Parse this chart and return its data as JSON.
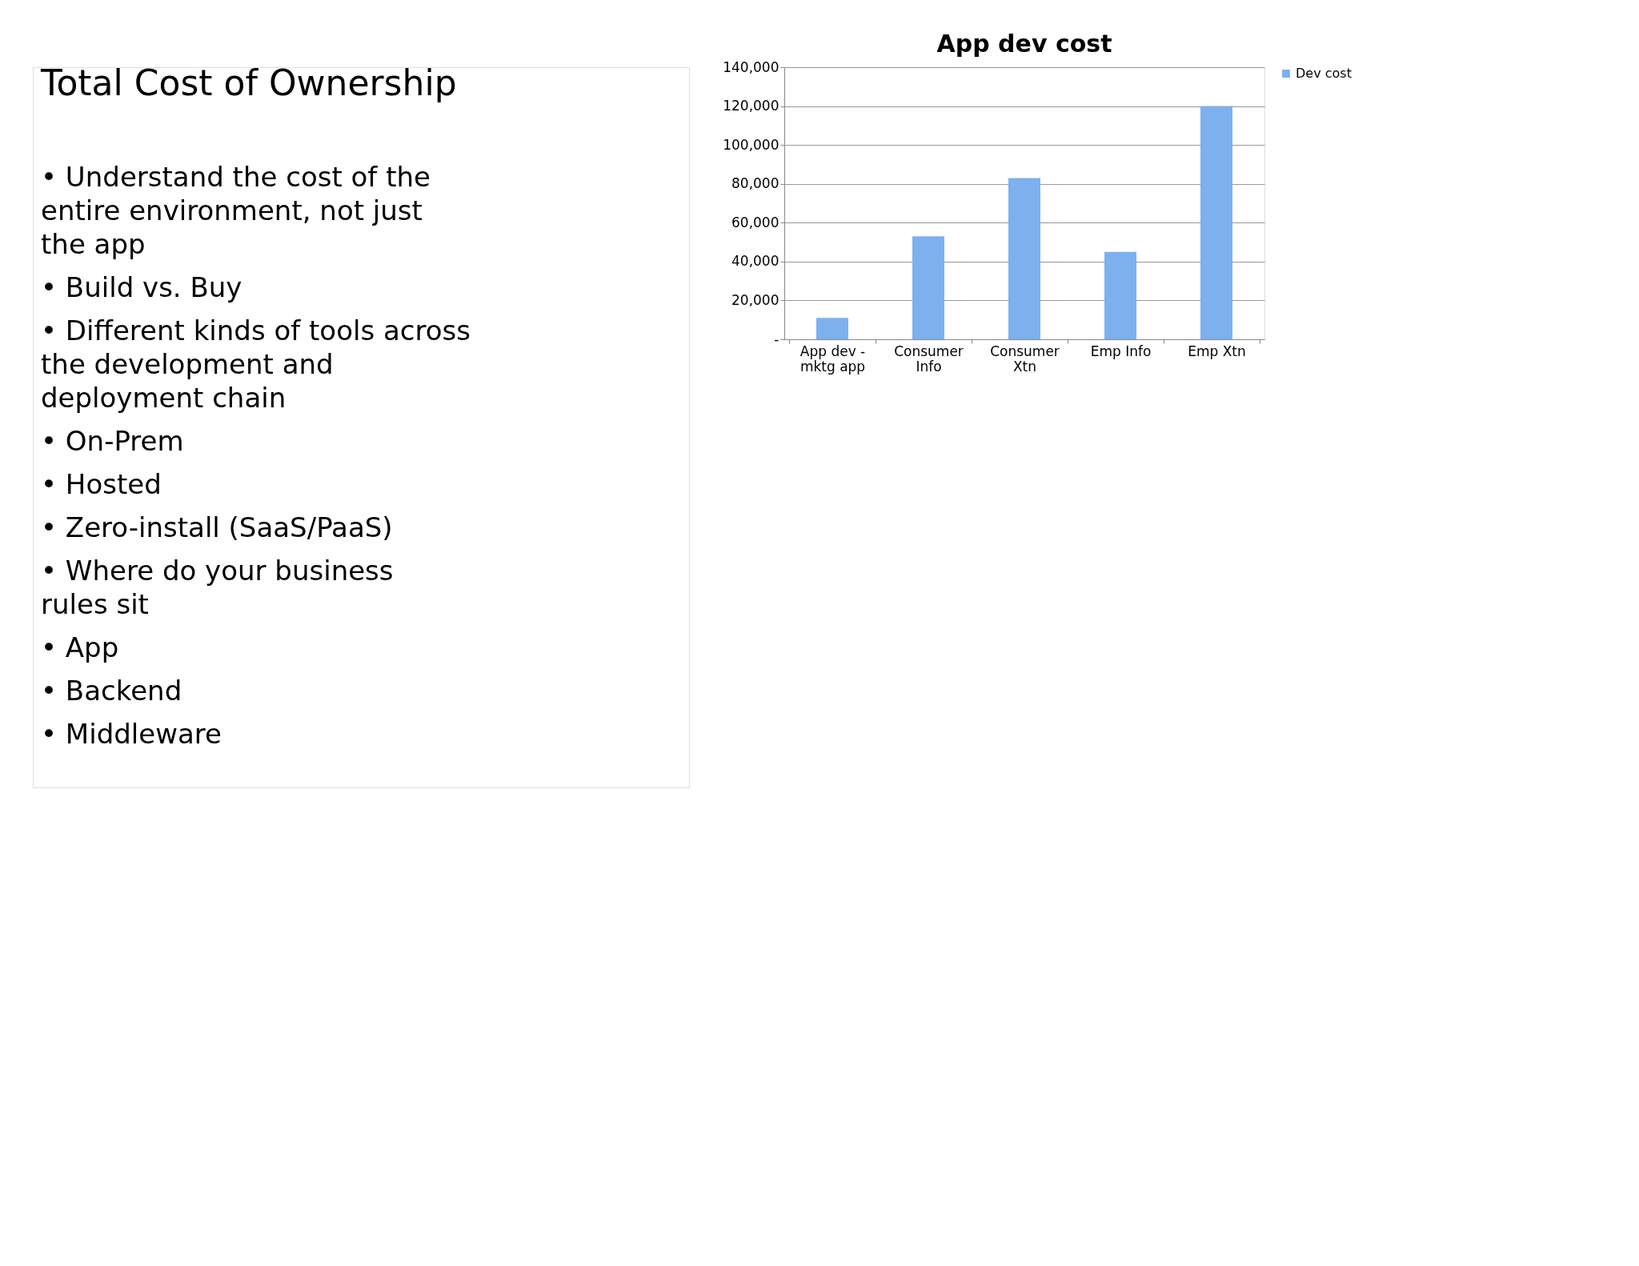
{
  "chart_data": {
    "type": "bar",
    "title": "App dev cost",
    "categories": [
      "App dev -\nmktg app",
      "Consumer\nInfo",
      "Consumer\nXtn",
      "Emp Info",
      "Emp Xtn"
    ],
    "series": [
      {
        "name": "Dev cost",
        "color": "#7eb0ee",
        "values": [
          11000,
          53000,
          83000,
          45000,
          120000
        ]
      }
    ],
    "ylim": [
      0,
      140000
    ],
    "yticks": [
      {
        "value": 0,
        "label": "-"
      },
      {
        "value": 20000,
        "label": "20,000"
      },
      {
        "value": 40000,
        "label": "40,000"
      },
      {
        "value": 60000,
        "label": "60,000"
      },
      {
        "value": 80000,
        "label": "80,000"
      },
      {
        "value": 100000,
        "label": "100,000"
      },
      {
        "value": 120000,
        "label": "120,000"
      },
      {
        "value": 140000,
        "label": "140,000"
      }
    ],
    "grid": "y",
    "legend": "right",
    "annotations": [
      "Total Cost of Ownership",
      "•  Understand the cost of the\n    entire environment, not just\n    the app",
      "•  Build vs. Buy",
      "•  Different kinds of tools across\n    the development and\n    deployment chain",
      "      • On-Prem",
      "      • Hosted",
      "      • Zero-install (SaaS/PaaS)",
      "•  Where do your business\n    rules sit",
      "      • App",
      "      • Backend",
      "      • Middleware"
    ]
  }
}
